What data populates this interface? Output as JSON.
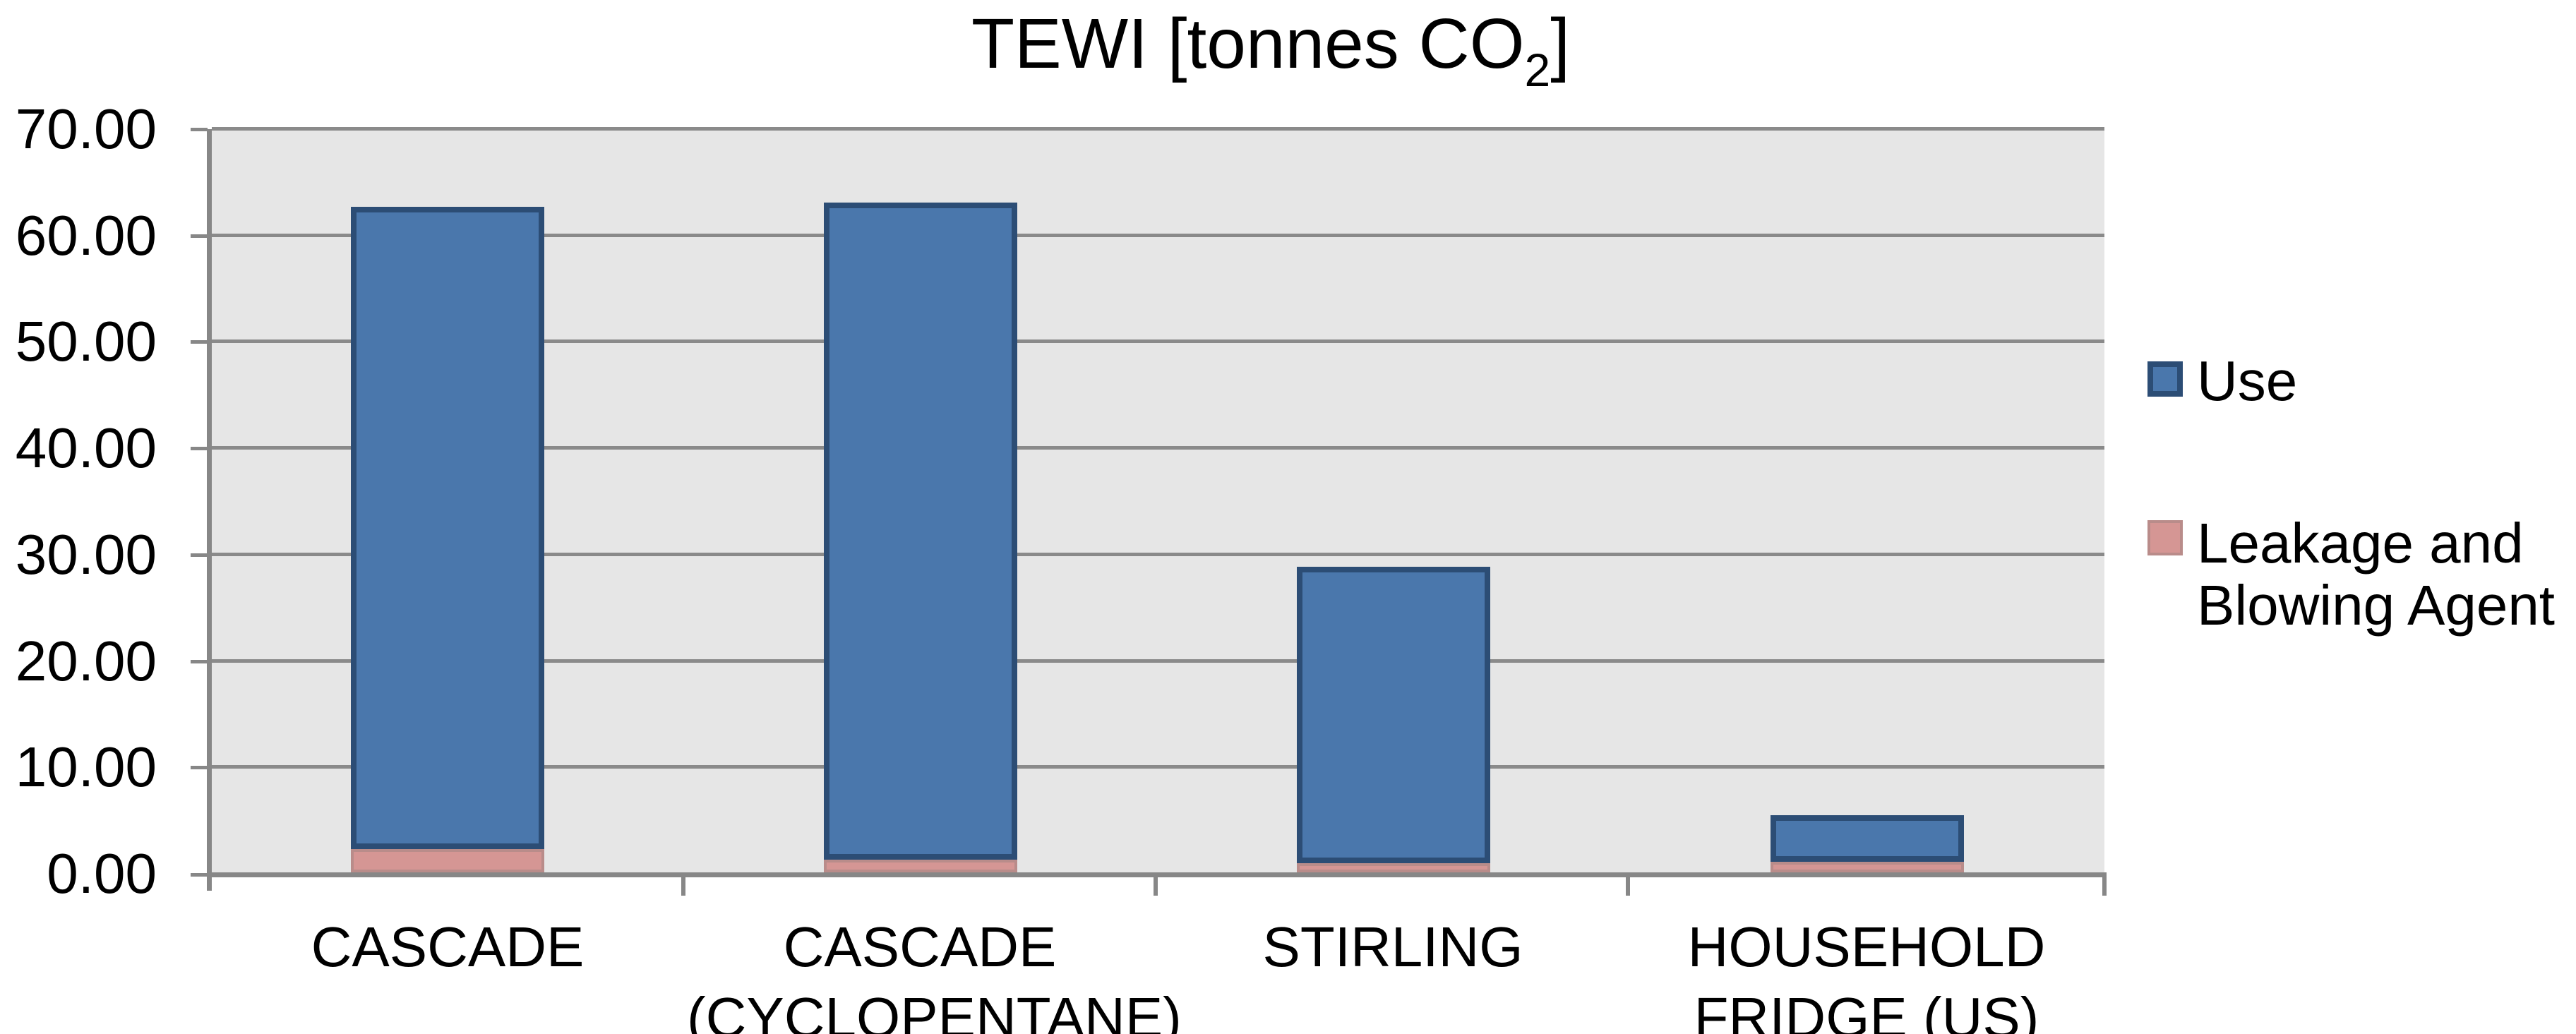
{
  "title": {
    "prefix": "TEWI [tonnes CO",
    "subscript": "2",
    "suffix": "]"
  },
  "y_axis": {
    "ticks": [
      "70.00",
      "60.00",
      "50.00",
      "40.00",
      "30.00",
      "20.00",
      "10.00",
      "0.00"
    ]
  },
  "x_axis": {
    "categories": [
      {
        "line1": "CASCADE",
        "line2": ""
      },
      {
        "line1": "CASCADE",
        "line2": "(CYCLOPENTANE)"
      },
      {
        "line1": "STIRLING",
        "line2": ""
      },
      {
        "line1": "HOUSEHOLD",
        "line2": "FRIDGE (US)"
      }
    ]
  },
  "legend": {
    "use": {
      "label": "Use"
    },
    "leakage": {
      "line1": "Leakage and",
      "line2": "Blowing Agent"
    }
  },
  "colors": {
    "use_fill": "#4a77ac",
    "use_border": "#2c4d75",
    "leakage_fill": "#d59694",
    "leakage_border": "#b98c8a",
    "gridline": "#8a8a8a",
    "plot_background": "#e6e6e6"
  },
  "chart_data": {
    "type": "bar",
    "stacked": true,
    "title": "TEWI [tonnes CO2]",
    "categories": [
      "CASCADE",
      "CASCADE (CYCLOPENTANE)",
      "STIRLING",
      "HOUSEHOLD FRIDGE (US)"
    ],
    "series": [
      {
        "name": "Leakage and Blowing Agent",
        "values": [
          2.2,
          1.2,
          0.9,
          1.0
        ],
        "color": "#d59694",
        "border_color": "#b98c8a"
      },
      {
        "name": "Use",
        "values": [
          60.5,
          61.9,
          27.9,
          4.4
        ],
        "color": "#4a77ac",
        "border_color": "#2c4d75"
      }
    ],
    "totals": [
      62.7,
      63.1,
      28.8,
      5.4
    ],
    "ylabel": "",
    "xlabel": "",
    "ylim": [
      0,
      70
    ],
    "ytick_step": 10,
    "ytick_format": "0.00",
    "grid": true,
    "legend_position": "right",
    "plot_background": "#e6e6e6"
  }
}
